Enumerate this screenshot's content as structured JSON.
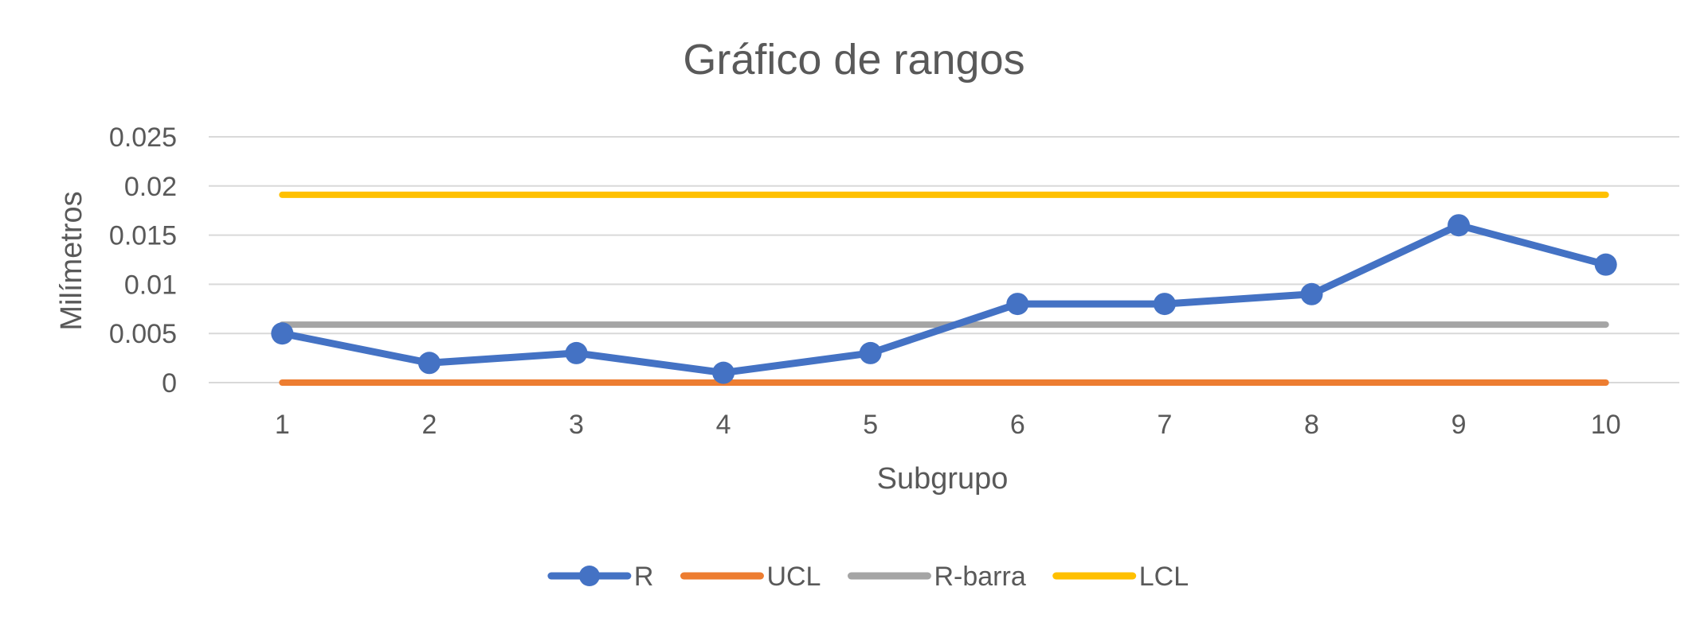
{
  "chart_data": {
    "type": "line",
    "title": "Gráfico de rangos",
    "xlabel": "Subgrupo",
    "ylabel": "Milímetros",
    "categories": [
      "1",
      "2",
      "3",
      "4",
      "5",
      "6",
      "7",
      "8",
      "9",
      "10"
    ],
    "ylim": [
      0,
      0.025
    ],
    "yticks": [
      "0",
      "0.005",
      "0.01",
      "0.015",
      "0.02",
      "0.025"
    ],
    "grid": true,
    "legend_position": "bottom",
    "series": [
      {
        "name": "R",
        "color": "#4472c4",
        "markers": true,
        "values": [
          0.005,
          0.002,
          0.003,
          0.001,
          0.003,
          0.008,
          0.008,
          0.009,
          0.016,
          0.012
        ]
      },
      {
        "name": "UCL",
        "color": "#ed7d31",
        "markers": false,
        "values": [
          0,
          0,
          0,
          0,
          0,
          0,
          0,
          0,
          0,
          0
        ]
      },
      {
        "name": "R-barra",
        "color": "#a5a5a5",
        "markers": false,
        "values": [
          0.0059,
          0.0059,
          0.0059,
          0.0059,
          0.0059,
          0.0059,
          0.0059,
          0.0059,
          0.0059,
          0.0059
        ]
      },
      {
        "name": "LCL",
        "color": "#ffc000",
        "markers": false,
        "values": [
          0.0191,
          0.0191,
          0.0191,
          0.0191,
          0.0191,
          0.0191,
          0.0191,
          0.0191,
          0.0191,
          0.0191
        ]
      }
    ]
  }
}
